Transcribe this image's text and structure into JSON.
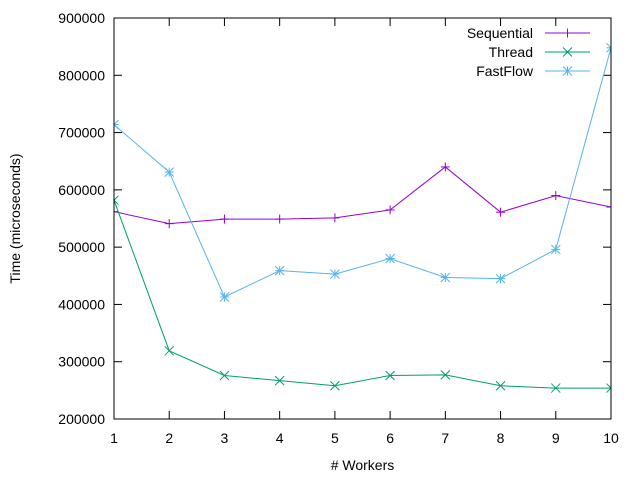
{
  "chart_data": {
    "type": "line",
    "xlabel": "# Workers",
    "ylabel": "Time (microseconds)",
    "xlim": [
      1,
      10
    ],
    "ylim": [
      200000,
      900000
    ],
    "x_ticks": [
      1,
      2,
      3,
      4,
      5,
      6,
      7,
      8,
      9,
      10
    ],
    "y_ticks": [
      200000,
      300000,
      400000,
      500000,
      600000,
      700000,
      800000,
      900000
    ],
    "grid": false,
    "legend_position": "top-right",
    "x": [
      1,
      2,
      3,
      4,
      5,
      6,
      7,
      8,
      9,
      10
    ],
    "series": [
      {
        "name": "Sequential",
        "color": "#9400d3",
        "marker": "plus",
        "values": [
          562000,
          541000,
          549000,
          549000,
          551000,
          565000,
          640000,
          561000,
          590000,
          570000
        ]
      },
      {
        "name": "Thread",
        "color": "#009e73",
        "marker": "cross",
        "values": [
          582000,
          319000,
          276000,
          267000,
          258000,
          276000,
          277000,
          258000,
          254000,
          254000
        ]
      },
      {
        "name": "FastFlow",
        "color": "#56b4e9",
        "marker": "star",
        "values": [
          714000,
          631000,
          413000,
          459000,
          453000,
          480000,
          447000,
          445000,
          496000,
          848000
        ]
      }
    ]
  }
}
